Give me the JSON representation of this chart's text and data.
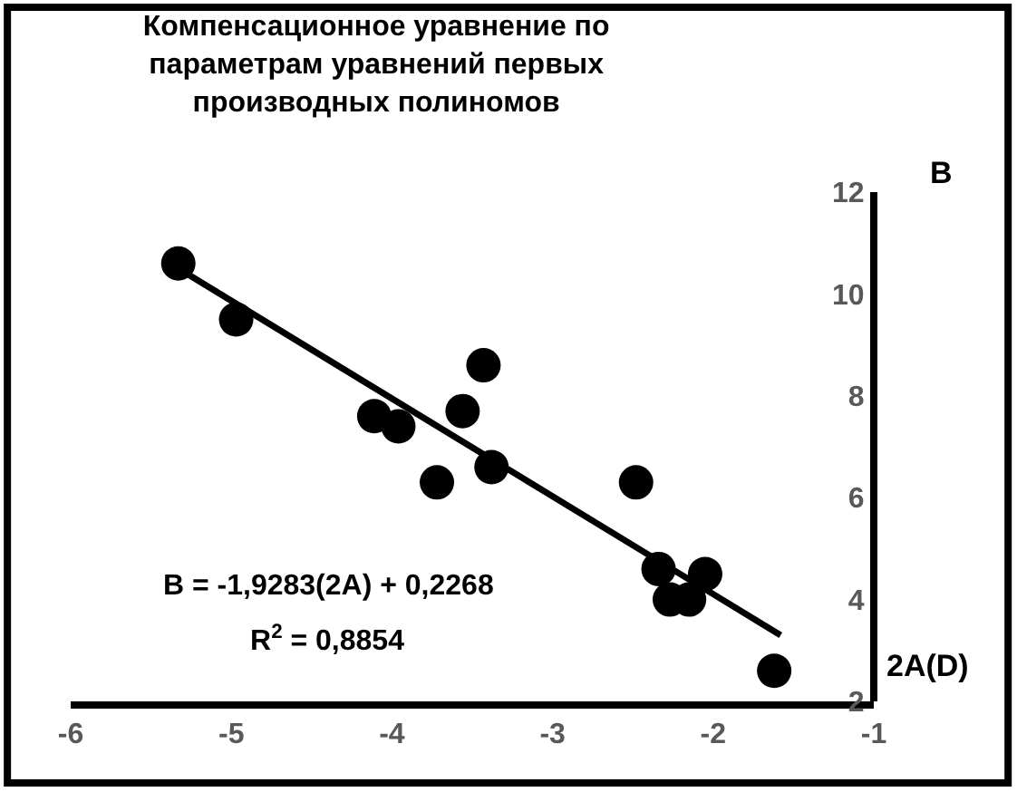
{
  "chart_data": {
    "type": "scatter",
    "title": "Компенсационное уравнение по\nпараметрам уравнений первых\nпроизводных полиномов",
    "xlabel": "2A(D)",
    "ylabel": "B",
    "marker": "circle",
    "series": [
      {
        "color": "#000000",
        "x": [
          -5.33,
          -4.97,
          -4.11,
          -3.96,
          -3.72,
          -3.56,
          -3.43,
          -3.38,
          -2.48,
          -2.34,
          -2.27,
          -2.15,
          -2.05,
          -1.62
        ],
        "values": [
          10.6,
          9.5,
          7.6,
          7.4,
          6.3,
          7.7,
          8.6,
          6.6,
          6.3,
          4.6,
          4.0,
          4.0,
          4.5,
          2.6
        ]
      },
      {
        "type": "line",
        "marker": "none",
        "color": "#000000",
        "x": [
          -5.33,
          -1.58
        ],
        "values": [
          10.5,
          3.3
        ]
      }
    ],
    "annotations": [
      "B = -1,9283(2A) + 0,2268",
      "R$^{2}$ = 0,8854"
    ],
    "xlim": [
      -6,
      -1
    ],
    "xticks": [
      -6,
      -5,
      -4,
      -3,
      -2,
      -1
    ],
    "ylim": [
      2,
      12
    ],
    "yticks": [
      2,
      4,
      6,
      8,
      10,
      12
    ],
    "grid": false
  }
}
